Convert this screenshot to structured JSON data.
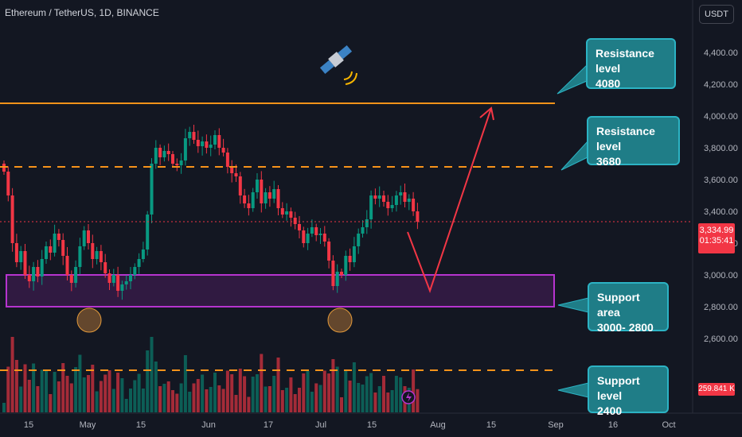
{
  "header": {
    "title": "Ethereum / TetherUS, 1D, BINANCE",
    "currency_button": "USDT"
  },
  "price_tag": {
    "price": "3,334.99",
    "countdown": "01:35:41"
  },
  "volume_tag": "259.841 K",
  "annotations": [
    {
      "line1": "Resistance level",
      "line2": "4080"
    },
    {
      "line1": "Resistance level",
      "line2": "3680"
    },
    {
      "line1": "Support area",
      "line2": "3000- 2800"
    },
    {
      "line1": "Support level",
      "line2": "2400"
    }
  ],
  "icons": {
    "satellite": "satellite-icon",
    "lightning": "lightning-icon"
  },
  "colors": {
    "background": "#131722",
    "up": "#089981",
    "down": "#f23645",
    "resistance_line": "#f7931a",
    "support_zone": "#9c27b0",
    "callout": "#1f7d87",
    "projection_arrow": "#f23645"
  },
  "chart_data": {
    "type": "candlestick",
    "symbol": "ETH/USDT",
    "timeframe": "1D",
    "ylim": [
      2160,
      4580
    ],
    "y_ticks": [
      2600,
      2800,
      3000,
      3200,
      3400,
      3600,
      3800,
      4000,
      4200,
      4400
    ],
    "y_tick_labels": [
      "2,600.00",
      "2,800.00",
      "3,000.00",
      "3,200.00",
      "3,400.00",
      "3,600.00",
      "3,800.00",
      "4,000.00",
      "4,200.00",
      "4,400.00"
    ],
    "x_tick_labels": [
      "15",
      "May",
      "15",
      "Jun",
      "17",
      "Jul",
      "15",
      "Aug",
      "15",
      "Sep",
      "16",
      "Oct"
    ],
    "ohlc_closes": [
      3650,
      3500,
      3200,
      3080,
      3150,
      3000,
      2960,
      3050,
      2990,
      3100,
      3180,
      3140,
      3260,
      3220,
      3120,
      3000,
      2950,
      3050,
      3180,
      3280,
      3200,
      3100,
      3150,
      3080,
      3010,
      2950,
      3000,
      2900,
      2940,
      2960,
      3000,
      3050,
      3100,
      3160,
      3380,
      3700,
      3800,
      3740,
      3780,
      3760,
      3700,
      3690,
      3720,
      3860,
      3900,
      3850,
      3810,
      3840,
      3800,
      3820,
      3880,
      3800,
      3770,
      3680,
      3640,
      3620,
      3500,
      3450,
      3420,
      3520,
      3600,
      3450,
      3520,
      3480,
      3540,
      3420,
      3380,
      3400,
      3360,
      3320,
      3280,
      3200,
      3260,
      3300,
      3250,
      3260,
      3210,
      3090,
      2930,
      3020,
      3000,
      3120,
      3080,
      3180,
      3260,
      3300,
      3350,
      3500,
      3480,
      3500,
      3460,
      3420,
      3440,
      3500,
      3520,
      3460,
      3480,
      3400,
      3335
    ],
    "levels": [
      {
        "label": "Resistance level",
        "value": 4080,
        "style": "solid"
      },
      {
        "label": "Resistance level",
        "value": 3680,
        "style": "dashed"
      },
      {
        "label": "Support level",
        "value": 2400,
        "style": "dashed"
      }
    ],
    "support_zone": [
      2800,
      3000
    ],
    "projection": [
      {
        "from": 3335,
        "to": 2900
      },
      {
        "from": 2900,
        "to": 4050
      }
    ],
    "last_price": 3334.99,
    "grid": false
  }
}
